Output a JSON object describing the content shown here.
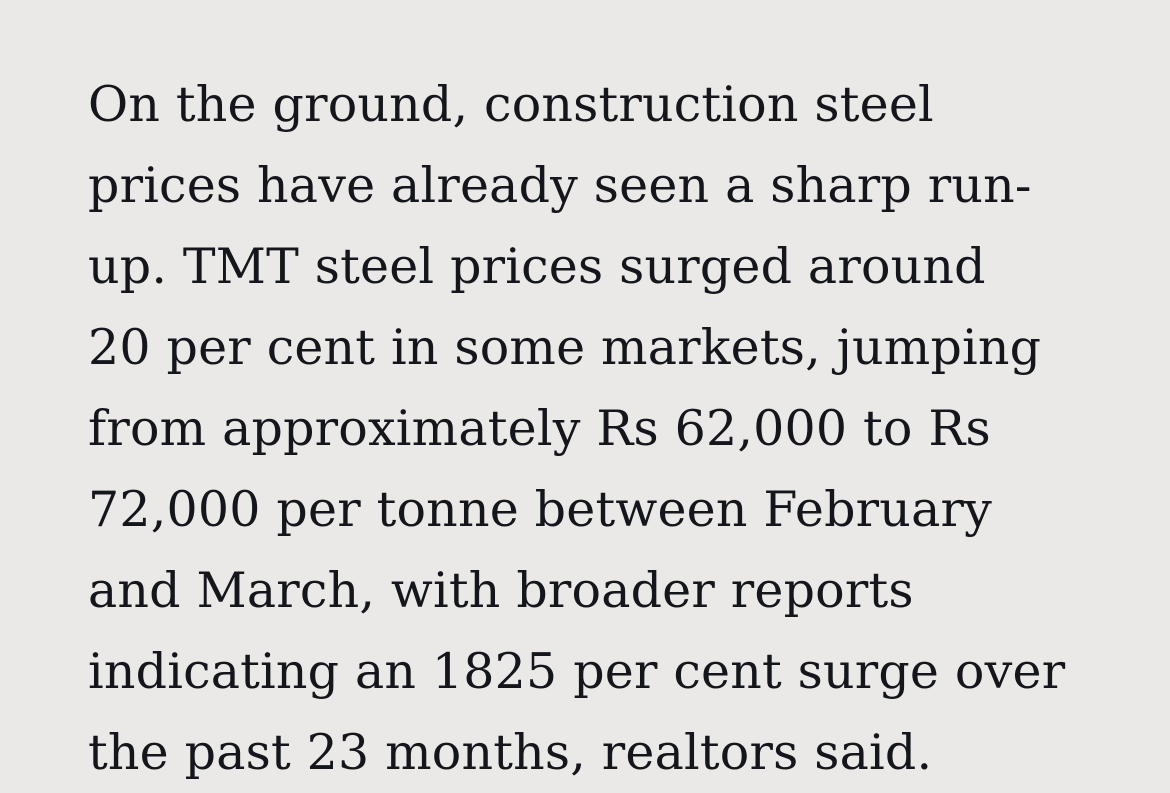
{
  "article": {
    "paragraph_lines": [
      "On the ground, construction steel",
      "prices have already seen a sharp run-",
      "up. TMT steel prices surged around",
      "20 per cent in some markets, jumping",
      "from approximately Rs 62,000 to Rs",
      "72,000 per tonne between February",
      "and March, with broader reports",
      "indicating an 1825 per cent surge over",
      "the past 23 months, realtors said."
    ]
  },
  "colors": {
    "background": "#ebe9e7",
    "text": "#14161c"
  }
}
